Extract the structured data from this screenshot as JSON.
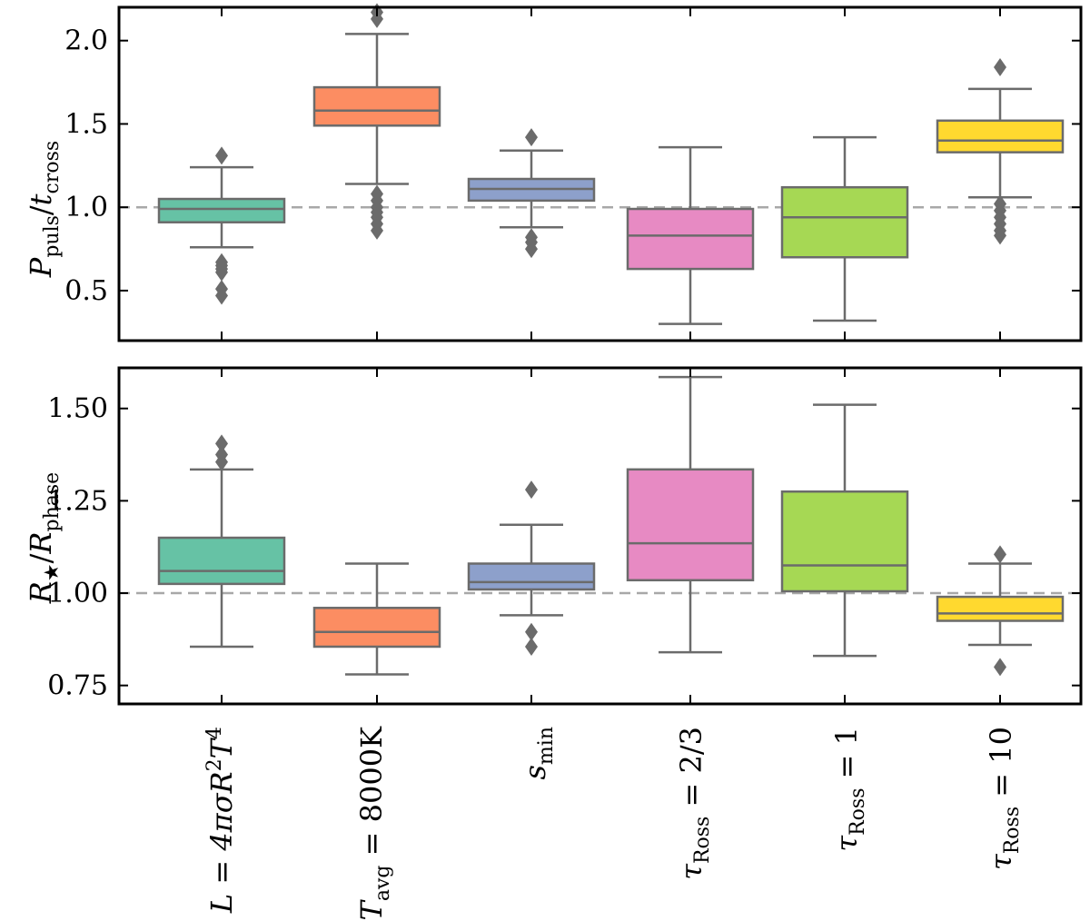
{
  "chart_data": [
    {
      "type": "box",
      "panel": "top",
      "ylabel": {
        "main": "P",
        "sub1": "puls",
        "sep": "/",
        "main2": "t",
        "sub2": "cross"
      },
      "ylim": [
        0.2,
        2.2
      ],
      "yticks": [
        0.5,
        1.0,
        1.5,
        2.0
      ],
      "ytick_labels": [
        "0.5",
        "1.0",
        "1.5",
        "2.0"
      ],
      "reference_line": 1.0,
      "boxes": [
        {
          "q1": 0.91,
          "median": 0.99,
          "q3": 1.05,
          "whisker_low": 0.76,
          "whisker_high": 1.24,
          "fliers": [
            0.47,
            0.51,
            0.61,
            0.63,
            0.65,
            0.67,
            1.31
          ],
          "color": "#66c2a5"
        },
        {
          "q1": 1.49,
          "median": 1.58,
          "q3": 1.72,
          "whisker_low": 1.14,
          "whisker_high": 2.04,
          "fliers": [
            0.86,
            0.9,
            0.94,
            0.97,
            1.0,
            1.04,
            1.08,
            2.13,
            2.17
          ],
          "color": "#fc8d62"
        },
        {
          "q1": 1.04,
          "median": 1.11,
          "q3": 1.17,
          "whisker_low": 0.88,
          "whisker_high": 1.34,
          "fliers": [
            0.75,
            0.79,
            0.82,
            1.42
          ],
          "color": "#8da0cb"
        },
        {
          "q1": 0.63,
          "median": 0.83,
          "q3": 0.99,
          "whisker_low": 0.3,
          "whisker_high": 1.36,
          "fliers": [],
          "color": "#e78ac3"
        },
        {
          "q1": 0.7,
          "median": 0.94,
          "q3": 1.12,
          "whisker_low": 0.32,
          "whisker_high": 1.42,
          "fliers": [],
          "color": "#a6d854"
        },
        {
          "q1": 1.33,
          "median": 1.4,
          "q3": 1.52,
          "whisker_low": 1.06,
          "whisker_high": 1.71,
          "fliers": [
            0.83,
            0.86,
            0.9,
            0.94,
            0.98,
            1.02,
            1.84
          ],
          "color": "#ffd92f"
        }
      ]
    },
    {
      "type": "box",
      "panel": "bottom",
      "ylabel": {
        "main": "R",
        "sub1": "★",
        "sep": "/",
        "main2": "R",
        "sub2": "phase"
      },
      "ylim": [
        0.7,
        1.61
      ],
      "yticks": [
        0.75,
        1.0,
        1.25,
        1.5
      ],
      "ytick_labels": [
        "0.75",
        "1.00",
        "1.25",
        "1.50"
      ],
      "reference_line": 1.0,
      "boxes": [
        {
          "q1": 1.025,
          "median": 1.06,
          "q3": 1.15,
          "whisker_low": 0.855,
          "whisker_high": 1.335,
          "fliers": [
            1.355,
            1.375,
            1.405
          ],
          "color": "#66c2a5"
        },
        {
          "q1": 0.855,
          "median": 0.895,
          "q3": 0.96,
          "whisker_low": 0.78,
          "whisker_high": 1.08,
          "fliers": [],
          "color": "#fc8d62"
        },
        {
          "q1": 1.01,
          "median": 1.03,
          "q3": 1.08,
          "whisker_low": 0.94,
          "whisker_high": 1.185,
          "fliers": [
            0.855,
            0.895,
            1.28
          ],
          "color": "#8da0cb"
        },
        {
          "q1": 1.035,
          "median": 1.135,
          "q3": 1.335,
          "whisker_low": 0.84,
          "whisker_high": 1.585,
          "fliers": [],
          "color": "#e78ac3"
        },
        {
          "q1": 1.005,
          "median": 1.075,
          "q3": 1.275,
          "whisker_low": 0.83,
          "whisker_high": 1.51,
          "fliers": [],
          "color": "#a6d854"
        },
        {
          "q1": 0.925,
          "median": 0.945,
          "q3": 0.99,
          "whisker_low": 0.86,
          "whisker_high": 1.08,
          "fliers": [
            0.8,
            1.105
          ],
          "color": "#ffd92f"
        }
      ]
    }
  ],
  "categories": [
    {
      "main": "L = 4πσR",
      "sup1": "2",
      "mid": "T",
      "sup2": "4"
    },
    {
      "main": "T",
      "sub": "avg",
      "rest": " = 8000K"
    },
    {
      "main": "s",
      "sub": "min"
    },
    {
      "main": "τ",
      "sub": "Ross",
      "rest": " = 2/3"
    },
    {
      "main": "τ",
      "sub": "Ross",
      "rest": " = 1"
    },
    {
      "main": "τ",
      "sub": "Ross",
      "rest": " = 10"
    }
  ]
}
